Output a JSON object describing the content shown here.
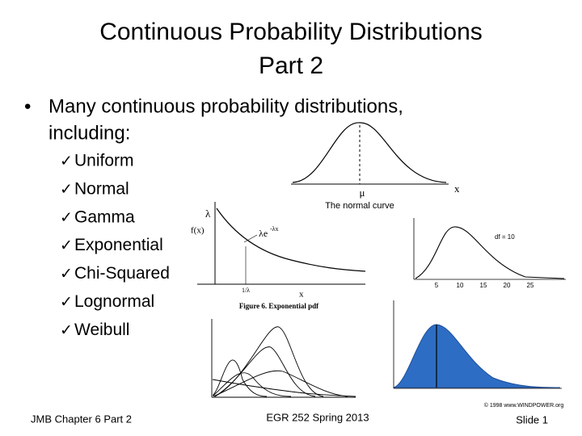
{
  "title": [
    "Continuous Probability Distributions",
    "Part 2"
  ],
  "bullet": [
    "Many continuous probability distributions,",
    "including:"
  ],
  "items": [
    "Uniform",
    "Normal",
    "Gamma",
    "Exponential",
    "Chi-Squared",
    "Lognormal",
    "Weibull"
  ],
  "figures": {
    "normal": {
      "caption": "The normal curve",
      "mean": "μ",
      "axis": "x"
    },
    "exponential": {
      "rate": "λ",
      "ylabel": "f(x)",
      "formula": "λe",
      "exponent": "-λx",
      "tick": "1/λ",
      "axis": "x",
      "caption": "Figure 6. Exponential pdf"
    },
    "chisquare": {
      "df": "df = 10",
      "ticks": [
        "5",
        "10",
        "15",
        "20",
        "25"
      ]
    },
    "weibull": {
      "credit": "© 1998 www.WINDPOWER.org"
    }
  },
  "footer": {
    "left": "JMB Chapter 6 Part 2",
    "center": "EGR 252 Spring 2013",
    "right": "Slide 1"
  }
}
